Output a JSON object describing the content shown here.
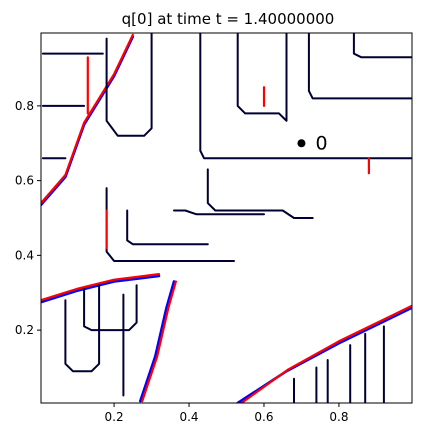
{
  "chart_data": {
    "type": "line",
    "title": "q[0] at time t =     1.40000000",
    "xlabel": "",
    "ylabel": "",
    "xlim": [
      0.005,
      0.995
    ],
    "ylim": [
      0.005,
      0.995
    ],
    "xticks": [
      0.2,
      0.4,
      0.6,
      0.8
    ],
    "xtick_labels": [
      "0.2",
      "0.4",
      "0.6",
      "0.8"
    ],
    "yticks": [
      0.2,
      0.4,
      0.6,
      0.8
    ],
    "ytick_labels": [
      "0.2",
      "0.4",
      "0.6",
      "0.8"
    ],
    "grid": false,
    "legend": "none",
    "colors": {
      "blue": "#0000ff",
      "red": "#ff0000",
      "black": "#000033"
    },
    "marker": {
      "x": 0.7,
      "y": 0.7,
      "label": "0"
    },
    "series": [
      {
        "color": "blue",
        "points": [
          [
            0.005,
            0.535
          ],
          [
            0.07,
            0.61
          ],
          [
            0.12,
            0.75
          ],
          [
            0.2,
            0.88
          ],
          [
            0.25,
            0.985
          ]
        ]
      },
      {
        "color": "red",
        "points": [
          [
            0.005,
            0.54
          ],
          [
            0.07,
            0.615
          ],
          [
            0.12,
            0.755
          ],
          [
            0.2,
            0.885
          ],
          [
            0.25,
            0.99
          ]
        ]
      },
      {
        "color": "blue",
        "points": [
          [
            0.005,
            0.275
          ],
          [
            0.1,
            0.305
          ],
          [
            0.2,
            0.33
          ],
          [
            0.32,
            0.345
          ]
        ]
      },
      {
        "color": "red",
        "points": [
          [
            0.005,
            0.28
          ],
          [
            0.1,
            0.31
          ],
          [
            0.2,
            0.335
          ],
          [
            0.32,
            0.35
          ]
        ]
      },
      {
        "color": "blue",
        "points": [
          [
            0.27,
            0.01
          ],
          [
            0.31,
            0.13
          ],
          [
            0.34,
            0.26
          ],
          [
            0.36,
            0.33
          ]
        ]
      },
      {
        "color": "red",
        "points": [
          [
            0.275,
            0.01
          ],
          [
            0.315,
            0.13
          ],
          [
            0.345,
            0.26
          ],
          [
            0.365,
            0.33
          ]
        ]
      },
      {
        "color": "blue",
        "points": [
          [
            0.53,
            0.005
          ],
          [
            0.66,
            0.09
          ],
          [
            0.8,
            0.165
          ],
          [
            0.995,
            0.26
          ]
        ]
      },
      {
        "color": "red",
        "points": [
          [
            0.54,
            0.005
          ],
          [
            0.665,
            0.095
          ],
          [
            0.8,
            0.17
          ],
          [
            0.995,
            0.265
          ]
        ]
      },
      {
        "color": "black",
        "points": [
          [
            0.01,
            0.94
          ],
          [
            0.17,
            0.94
          ]
        ]
      },
      {
        "color": "black",
        "points": [
          [
            0.01,
            0.8
          ],
          [
            0.12,
            0.8
          ]
        ]
      },
      {
        "color": "black",
        "points": [
          [
            0.01,
            0.66
          ],
          [
            0.07,
            0.66
          ]
        ]
      },
      {
        "color": "black",
        "points": [
          [
            0.07,
            0.28
          ],
          [
            0.07,
            0.11
          ],
          [
            0.09,
            0.09
          ],
          [
            0.14,
            0.09
          ],
          [
            0.16,
            0.11
          ],
          [
            0.16,
            0.32
          ]
        ]
      },
      {
        "color": "black",
        "points": [
          [
            0.12,
            0.31
          ],
          [
            0.12,
            0.21
          ],
          [
            0.14,
            0.2
          ],
          [
            0.24,
            0.2
          ],
          [
            0.26,
            0.22
          ],
          [
            0.26,
            0.32
          ]
        ]
      },
      {
        "color": "black",
        "points": [
          [
            0.18,
            0.98
          ],
          [
            0.18,
            0.76
          ],
          [
            0.21,
            0.72
          ],
          [
            0.28,
            0.72
          ],
          [
            0.3,
            0.74
          ],
          [
            0.3,
            0.995
          ]
        ]
      },
      {
        "color": "black",
        "points": [
          [
            0.225,
            0.025
          ],
          [
            0.225,
            0.295
          ]
        ]
      },
      {
        "color": "black",
        "points": [
          [
            0.18,
            0.58
          ],
          [
            0.18,
            0.41
          ],
          [
            0.2,
            0.385
          ],
          [
            0.52,
            0.385
          ]
        ]
      },
      {
        "color": "black",
        "points": [
          [
            0.235,
            0.52
          ],
          [
            0.235,
            0.44
          ],
          [
            0.25,
            0.43
          ],
          [
            0.45,
            0.43
          ]
        ]
      },
      {
        "color": "black",
        "points": [
          [
            0.36,
            0.52
          ],
          [
            0.39,
            0.52
          ],
          [
            0.42,
            0.51
          ],
          [
            0.6,
            0.51
          ]
        ]
      },
      {
        "color": "black",
        "points": [
          [
            0.45,
            0.63
          ],
          [
            0.45,
            0.54
          ],
          [
            0.47,
            0.52
          ],
          [
            0.65,
            0.52
          ],
          [
            0.68,
            0.5
          ],
          [
            0.73,
            0.5
          ]
        ]
      },
      {
        "color": "black",
        "points": [
          [
            0.43,
            0.995
          ],
          [
            0.43,
            0.68
          ],
          [
            0.44,
            0.66
          ],
          [
            0.995,
            0.66
          ]
        ]
      },
      {
        "color": "black",
        "points": [
          [
            0.53,
            0.995
          ],
          [
            0.53,
            0.8
          ],
          [
            0.55,
            0.78
          ],
          [
            0.64,
            0.78
          ],
          [
            0.66,
            0.76
          ],
          [
            0.66,
            0.995
          ]
        ]
      },
      {
        "color": "black",
        "points": [
          [
            0.72,
            0.995
          ],
          [
            0.72,
            0.84
          ],
          [
            0.73,
            0.82
          ],
          [
            0.995,
            0.82
          ]
        ]
      },
      {
        "color": "black",
        "points": [
          [
            0.84,
            0.995
          ],
          [
            0.84,
            0.94
          ],
          [
            0.86,
            0.93
          ],
          [
            0.995,
            0.93
          ]
        ]
      },
      {
        "color": "black",
        "points": [
          [
            0.68,
            0.005
          ],
          [
            0.68,
            0.07
          ]
        ]
      },
      {
        "color": "black",
        "points": [
          [
            0.74,
            0.005
          ],
          [
            0.74,
            0.1
          ]
        ]
      },
      {
        "color": "black",
        "points": [
          [
            0.77,
            0.005
          ],
          [
            0.77,
            0.12
          ]
        ]
      },
      {
        "color": "black",
        "points": [
          [
            0.83,
            0.005
          ],
          [
            0.83,
            0.16
          ]
        ]
      },
      {
        "color": "black",
        "points": [
          [
            0.87,
            0.005
          ],
          [
            0.87,
            0.19
          ]
        ]
      },
      {
        "color": "black",
        "points": [
          [
            0.92,
            0.005
          ],
          [
            0.92,
            0.21
          ]
        ]
      },
      {
        "color": "red",
        "points": [
          [
            0.18,
            0.42
          ],
          [
            0.18,
            0.52
          ]
        ]
      },
      {
        "color": "red",
        "points": [
          [
            0.13,
            0.78
          ],
          [
            0.13,
            0.93
          ]
        ]
      },
      {
        "color": "red",
        "points": [
          [
            0.6,
            0.8
          ],
          [
            0.6,
            0.85
          ]
        ]
      },
      {
        "color": "red",
        "points": [
          [
            0.88,
            0.62
          ],
          [
            0.88,
            0.66
          ]
        ]
      }
    ]
  }
}
